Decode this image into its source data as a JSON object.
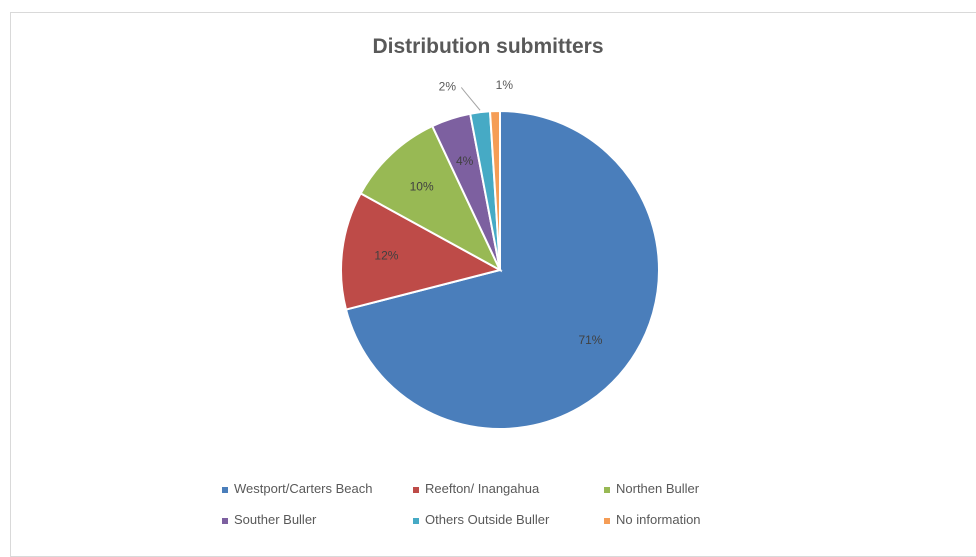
{
  "chart_data": {
    "type": "pie",
    "title": "Distribution submitters",
    "categories": [
      "Westport/Carters Beach",
      "Reefton/ Inangahua",
      "Northen Buller",
      "Souther Buller",
      "Others Outside Buller",
      "No information"
    ],
    "values": [
      71,
      12,
      10,
      4,
      2,
      1
    ],
    "data_labels": [
      "71%",
      "12%",
      "10%",
      "4%",
      "2%",
      "1%"
    ],
    "colors": [
      "#4a7ebb",
      "#be4b48",
      "#98b954",
      "#7d60a0",
      "#46aac5",
      "#f59d56"
    ],
    "start_angle_deg": 0,
    "direction": "clockwise",
    "legend": "bottom"
  }
}
